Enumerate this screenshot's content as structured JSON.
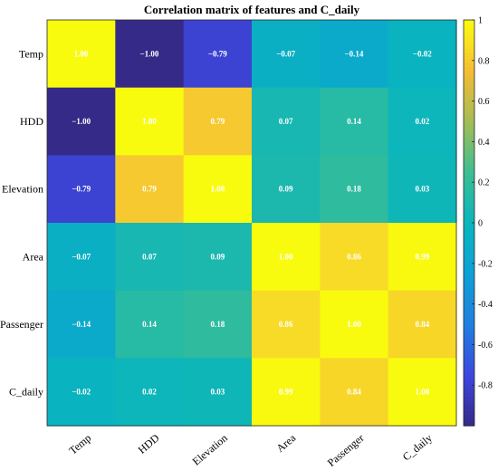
{
  "chart_data": {
    "type": "heatmap",
    "title": "Correlation matrix of features and C_daily",
    "row_labels": [
      "Temp",
      "HDD",
      "Elevation",
      "Area",
      "Passenger",
      "C_daily"
    ],
    "column_labels": [
      "Temp",
      "HDD",
      "Elevation",
      "Area",
      "Passenger",
      "C_daily"
    ],
    "values": [
      [
        1.0,
        -1.0,
        -0.79,
        -0.07,
        -0.14,
        -0.02
      ],
      [
        -1.0,
        1.0,
        0.79,
        0.07,
        0.14,
        0.02
      ],
      [
        -0.79,
        0.79,
        1.0,
        0.09,
        0.18,
        0.03
      ],
      [
        -0.07,
        0.07,
        0.09,
        1.0,
        0.86,
        0.99
      ],
      [
        -0.14,
        0.14,
        0.18,
        0.86,
        1.0,
        0.84
      ],
      [
        -0.02,
        0.02,
        0.03,
        0.99,
        0.84,
        1.0
      ]
    ],
    "cell_labels": [
      [
        "1.00",
        "−1.00",
        "−0.79",
        "−0.07",
        "−0.14",
        "−0.02"
      ],
      [
        "−1.00",
        "1.00",
        "0.79",
        "0.07",
        "0.14",
        "0.02"
      ],
      [
        "−0.79",
        "0.79",
        "1.00",
        "0.09",
        "0.18",
        "0.03"
      ],
      [
        "−0.07",
        "0.07",
        "0.09",
        "1.00",
        "0.86",
        "0.99"
      ],
      [
        "−0.14",
        "0.14",
        "0.18",
        "0.86",
        "1.00",
        "0.84"
      ],
      [
        "−0.02",
        "0.02",
        "0.03",
        "0.99",
        "0.84",
        "1.00"
      ]
    ],
    "colorbar": {
      "range": [
        -1,
        1
      ],
      "ticks": [
        -0.8,
        -0.6,
        -0.4,
        -0.2,
        0,
        0.2,
        0.4,
        0.6,
        0.8,
        1
      ],
      "tick_labels": [
        "-0.8",
        "-0.6",
        "-0.4",
        "-0.2",
        "0",
        "0.2",
        "0.4",
        "0.6",
        "0.8",
        "1"
      ],
      "colormap": "parula"
    }
  }
}
